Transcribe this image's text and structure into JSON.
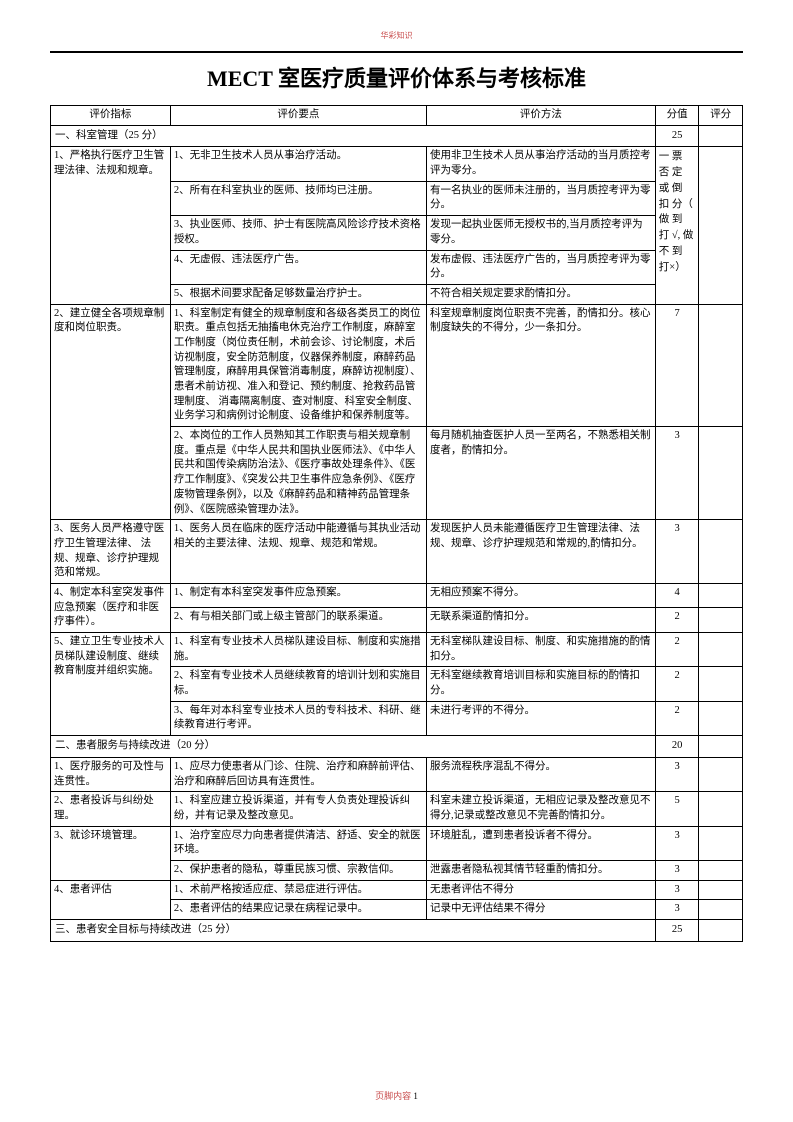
{
  "watermark_top": "华彩知识",
  "title": "MECT 室医疗质量评价体系与考核标准",
  "headers": {
    "c1": "评价指标",
    "c2": "评价要点",
    "c3": "评价方法",
    "c4": "分值",
    "c5": "评分"
  },
  "sec1": {
    "label": "一、科室管理（25 分）",
    "score": "25"
  },
  "r1": {
    "indicator": "1、严格执行医疗卫生管理法律、法规和规章。",
    "p1": "1、无非卫生技术人员从事治疗活动。",
    "p2": "2、所有在科室执业的医师、技师均已注册。",
    "p3": "3、执业医师、技师、护士有医院高风险诊疗技术资格授权。",
    "p4": "4、无虚假、违法医疗广告。",
    "p5": "5、根据术间要求配备足够数量治疗护士。",
    "m1": "使用非卫生技术人员从事治疗活动的当月质控考评为零分。",
    "m2": "有一名执业的医师未注册的，当月质控考评为零分。",
    "m3": "发现一起执业医师无授权书的,当月质控考评为零分。",
    "m4": "发布虚假、违法医疗广告的，当月质控考评为零分。",
    "m5": "不符合相关规定要求酌情扣分。",
    "score_note": "一 票 否 定 或 倒 扣 分（ 做 到 打 √, 做 不 到 打×）"
  },
  "r2": {
    "indicator": "2、建立健全各项规章制度和岗位职责。",
    "p1": "1、科室制定有健全的规章制度和各级各类员工的岗位职责。重点包括无抽搐电休克治疗工作制度，麻醉室工作制度（岗位责任制，术前会诊、讨论制度，术后访视制度，安全防范制度，仪器保养制度，麻醉药品管理制度，麻醉用具保管消毒制度，麻醉访视制度）、患者术前访视、准入和登记、预约制度、抢救药品管理制度、 消毒隔离制度、查对制度、科室安全制度、业务学习和病例讨论制度、设备维护和保养制度等。",
    "p2": "2、本岗位的工作人员熟知其工作职责与相关规章制度。重点是《中华人民共和国执业医师法》、《中华人民共和国传染病防治法》、《医疗事故处理条件》、《医疗工作制度》、《突发公共卫生事件应急条例》、《医疗废物管理条例》，以及《麻醉药品和精神药品管理条例》、《医院感染管理办法》。",
    "m1": "科室规章制度岗位职责不完善，酌情扣分。核心制度缺失的不得分，少一条扣分。",
    "m2": "每月随机抽查医护人员一至两名，不熟悉相关制度者，酌情扣分。",
    "s1": "7",
    "s2": "3"
  },
  "r3": {
    "indicator": "3、医务人员严格遵守医疗卫生管理法律、 法规、规章、诊疗护理规范和常规。",
    "p1": "1、医务人员在临床的医疗活动中能遵循与其执业活动相关的主要法律、法规、规章、规范和常规。",
    "m1": "发现医护人员未能遵循医疗卫生管理法律、法规、规章、诊疗护理规范和常规的,酌情扣分。",
    "s1": "3"
  },
  "r4": {
    "indicator": "4、制定本科室突发事件应急预案（医疗和非医疗事件）。",
    "p1": "1、制定有本科室突发事件应急预案。",
    "p2": "2、有与相关部门或上级主管部门的联系渠道。",
    "m1": "无相应预案不得分。",
    "m2": "无联系渠道酌情扣分。",
    "s1": "4",
    "s2": "2"
  },
  "r5": {
    "indicator": "5、建立卫生专业技术人员梯队建设制度、继续教育制度并组织实施。",
    "p1": "1、科室有专业技术人员梯队建设目标、制度和实施措施。",
    "p2": "2、科室有专业技术人员继续教育的培训计划和实施目标。",
    "p3": "3、每年对本科室专业技术人员的专科技术、科研、继续教育进行考评。",
    "m1": "无科室梯队建设目标、制度、和实施措施的酌情扣分。",
    "m2": "无科室继续教育培训目标和实施目标的酌情扣分。",
    "m3": "未进行考评的不得分。",
    "s1": "2",
    "s2": "2",
    "s3": "2"
  },
  "sec2": {
    "label": "二、患者服务与持续改进（20 分）",
    "score": "20"
  },
  "r6": {
    "indicator": "1、医疗服务的可及性与连贯性。",
    "p1": "1、应尽力使患者从门诊、住院、治疗和麻醉前评估、治疗和麻醉后回访具有连贯性。",
    "m1": "服务流程秩序混乱不得分。",
    "s1": "3"
  },
  "r7": {
    "indicator": "2、患者投诉与纠纷处理。",
    "p1": "1、科室应建立投诉渠道，并有专人负责处理投诉纠纷，并有记录及整改意见。",
    "m1": "科室未建立投诉渠道，无相应记录及整改意见不得分,记录或整改意见不完善酌情扣分。",
    "s1": "5"
  },
  "r8": {
    "indicator": "3、就诊环境管理。",
    "p1": "1、治疗室应尽力向患者提供清洁、舒适、安全的就医环境。",
    "p2": "2、保护患者的隐私，尊重民族习惯、宗教信仰。",
    "m1": "环境脏乱，遭到患者投诉者不得分。",
    "m2": "泄露患者隐私视其情节轻重酌情扣分。",
    "s1": "3",
    "s2": "3"
  },
  "r9": {
    "indicator": "4、患者评估",
    "p1": "1、术前严格按适应症、禁忌症进行评估。",
    "p2": "2、患者评估的结果应记录在病程记录中。",
    "m1": "无患者评估不得分",
    "m2": "记录中无评估结果不得分",
    "s1": "3",
    "s2": "3"
  },
  "sec3": {
    "label": "三、患者安全目标与持续改进（25 分）",
    "score": "25"
  },
  "footer_label": "页脚内容",
  "footer_page": "1"
}
